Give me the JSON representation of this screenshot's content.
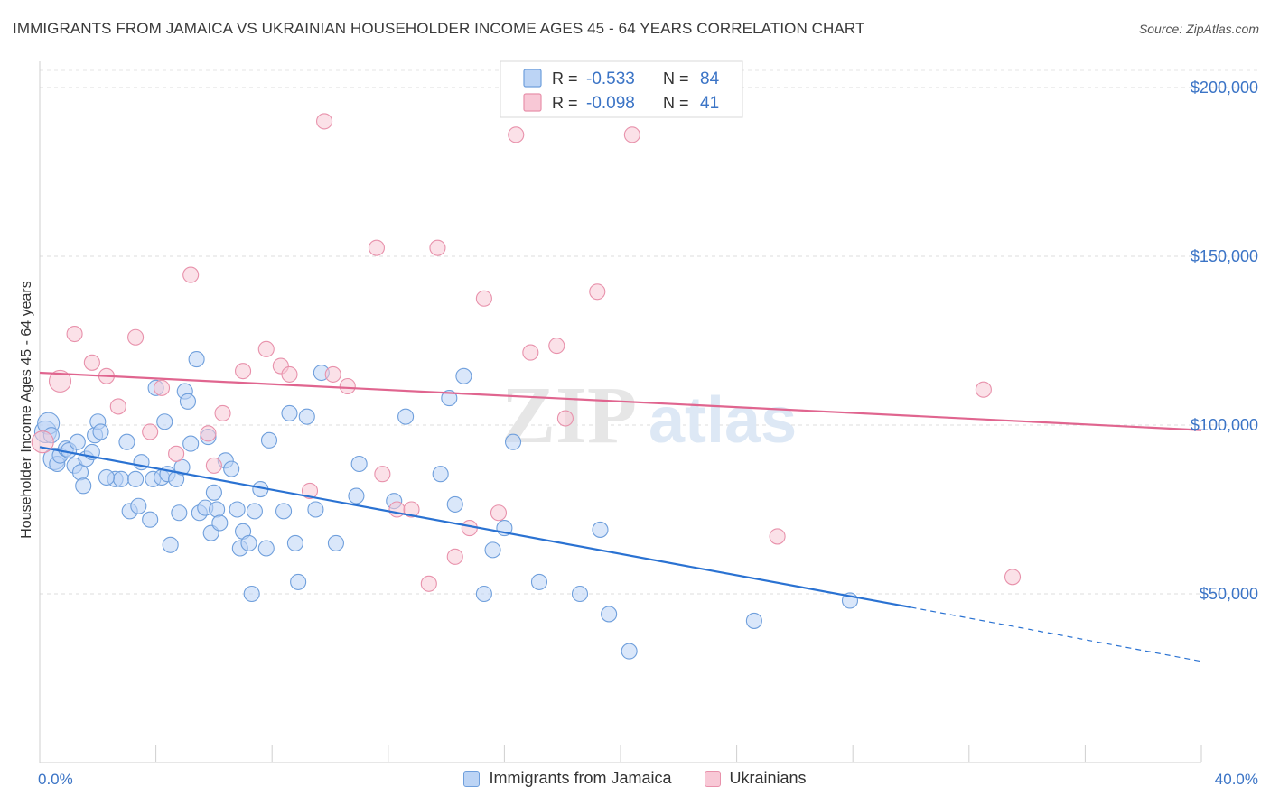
{
  "title": "IMMIGRANTS FROM JAMAICA VS UKRAINIAN HOUSEHOLDER INCOME AGES 45 - 64 YEARS CORRELATION CHART",
  "source": "Source: ZipAtlas.com",
  "watermark": {
    "zip": "ZIP",
    "atlas": "atlas"
  },
  "legend_top": {
    "rows": [
      {
        "r_label": "R =",
        "r_value": "-0.533",
        "n_label": "N =",
        "n_value": "84",
        "fill": "#bcd4f5",
        "stroke": "#6f9fdc"
      },
      {
        "r_label": "R =",
        "r_value": "-0.098",
        "n_label": "N =",
        "n_value": "41",
        "fill": "#f8c8d6",
        "stroke": "#e891ab"
      }
    ]
  },
  "legend_bottom": {
    "items": [
      {
        "label": "Immigrants from Jamaica",
        "fill": "#bcd4f5",
        "stroke": "#6f9fdc"
      },
      {
        "label": "Ukrainians",
        "fill": "#f8c8d6",
        "stroke": "#e891ab"
      }
    ]
  },
  "chart_data": {
    "type": "scatter",
    "title": "IMMIGRANTS FROM JAMAICA VS UKRAINIAN HOUSEHOLDER INCOME AGES 45 - 64 YEARS CORRELATION CHART",
    "xlabel": "",
    "ylabel": "Householder Income Ages 45 - 64 years",
    "xlim": [
      0,
      40
    ],
    "ylim": [
      0,
      210000
    ],
    "x_tick_labels": [
      "0.0%",
      "40.0%"
    ],
    "y_ticks": [
      50000,
      100000,
      150000,
      200000
    ],
    "y_tick_labels": [
      "$50,000",
      "$100,000",
      "$150,000",
      "$200,000"
    ],
    "grid": true,
    "legend_position": "top-center",
    "series": [
      {
        "name": "Immigrants from Jamaica",
        "color": "#6f9fdc",
        "fill": "#bcd4f5",
        "trend_color": "#2a72d2",
        "trend": {
          "x0": 0,
          "y0": 93500,
          "x1": 30,
          "y1": 46000,
          "dash_to_x": 40,
          "dash_to_y": 30000
        },
        "points": [
          [
            0.2,
            98000
          ],
          [
            0.3,
            100500
          ],
          [
            0.5,
            90000
          ],
          [
            0.6,
            88500
          ],
          [
            0.7,
            91000
          ],
          [
            0.9,
            93000
          ],
          [
            1.0,
            92500
          ],
          [
            1.2,
            88000
          ],
          [
            1.3,
            95000
          ],
          [
            1.4,
            86000
          ],
          [
            1.5,
            82000
          ],
          [
            1.6,
            90000
          ],
          [
            1.8,
            92000
          ],
          [
            1.9,
            97000
          ],
          [
            2.0,
            101000
          ],
          [
            2.1,
            98000
          ],
          [
            2.6,
            84000
          ],
          [
            2.8,
            84000
          ],
          [
            3.0,
            95000
          ],
          [
            3.1,
            74500
          ],
          [
            3.3,
            84000
          ],
          [
            3.4,
            76000
          ],
          [
            3.5,
            89000
          ],
          [
            3.8,
            72000
          ],
          [
            3.9,
            84000
          ],
          [
            4.0,
            111000
          ],
          [
            4.2,
            84500
          ],
          [
            4.3,
            101000
          ],
          [
            4.4,
            85500
          ],
          [
            4.5,
            64500
          ],
          [
            4.7,
            84000
          ],
          [
            4.8,
            74000
          ],
          [
            4.9,
            87500
          ],
          [
            5.0,
            110000
          ],
          [
            5.1,
            107000
          ],
          [
            5.2,
            94500
          ],
          [
            5.4,
            119500
          ],
          [
            5.5,
            74000
          ],
          [
            5.7,
            75500
          ],
          [
            5.8,
            96500
          ],
          [
            5.9,
            68000
          ],
          [
            6.0,
            80000
          ],
          [
            6.1,
            75000
          ],
          [
            6.2,
            71000
          ],
          [
            6.4,
            89500
          ],
          [
            6.6,
            87000
          ],
          [
            6.8,
            75000
          ],
          [
            6.9,
            63500
          ],
          [
            7.0,
            68500
          ],
          [
            7.2,
            65000
          ],
          [
            7.3,
            50000
          ],
          [
            7.4,
            74500
          ],
          [
            7.6,
            81000
          ],
          [
            7.8,
            63500
          ],
          [
            7.9,
            95500
          ],
          [
            8.4,
            74500
          ],
          [
            8.6,
            103500
          ],
          [
            8.8,
            65000
          ],
          [
            8.9,
            53500
          ],
          [
            9.2,
            102500
          ],
          [
            9.5,
            75000
          ],
          [
            9.7,
            115500
          ],
          [
            10.2,
            65000
          ],
          [
            10.9,
            79000
          ],
          [
            11.0,
            88500
          ],
          [
            12.6,
            102500
          ],
          [
            12.2,
            77500
          ],
          [
            13.8,
            85500
          ],
          [
            14.1,
            108000
          ],
          [
            14.3,
            76500
          ],
          [
            14.6,
            114500
          ],
          [
            15.3,
            50000
          ],
          [
            15.6,
            63000
          ],
          [
            16.0,
            69500
          ],
          [
            16.3,
            95000
          ],
          [
            17.2,
            53500
          ],
          [
            18.6,
            50000
          ],
          [
            19.3,
            69000
          ],
          [
            19.6,
            44000
          ],
          [
            20.3,
            33000
          ],
          [
            24.6,
            42000
          ],
          [
            27.9,
            48000
          ],
          [
            0.4,
            97000
          ],
          [
            2.3,
            84500
          ]
        ]
      },
      {
        "name": "Ukrainians",
        "color": "#e891ab",
        "fill": "#f8c8d6",
        "trend_color": "#e0658f",
        "trend": {
          "x0": 0,
          "y0": 115500,
          "x1": 40,
          "y1": 98500
        },
        "points": [
          [
            0.1,
            95000
          ],
          [
            0.7,
            113000
          ],
          [
            1.2,
            127000
          ],
          [
            1.8,
            118500
          ],
          [
            2.3,
            114500
          ],
          [
            2.7,
            105500
          ],
          [
            3.3,
            126000
          ],
          [
            3.8,
            98000
          ],
          [
            4.2,
            111000
          ],
          [
            4.7,
            91500
          ],
          [
            5.2,
            144500
          ],
          [
            5.8,
            97500
          ],
          [
            6.0,
            88000
          ],
          [
            6.3,
            103500
          ],
          [
            7.0,
            116000
          ],
          [
            7.8,
            122500
          ],
          [
            8.3,
            117500
          ],
          [
            8.6,
            115000
          ],
          [
            9.3,
            80500
          ],
          [
            9.8,
            190000
          ],
          [
            10.1,
            115000
          ],
          [
            10.6,
            111500
          ],
          [
            11.6,
            152500
          ],
          [
            11.8,
            85500
          ],
          [
            12.3,
            75000
          ],
          [
            12.8,
            75000
          ],
          [
            13.4,
            53000
          ],
          [
            13.7,
            152500
          ],
          [
            14.3,
            61000
          ],
          [
            14.8,
            69500
          ],
          [
            15.3,
            137500
          ],
          [
            15.8,
            74000
          ],
          [
            16.4,
            186000
          ],
          [
            16.9,
            121500
          ],
          [
            17.8,
            123500
          ],
          [
            18.1,
            102000
          ],
          [
            19.2,
            139500
          ],
          [
            20.4,
            186000
          ],
          [
            25.4,
            67000
          ],
          [
            32.5,
            110500
          ],
          [
            33.5,
            55000
          ]
        ]
      }
    ]
  }
}
